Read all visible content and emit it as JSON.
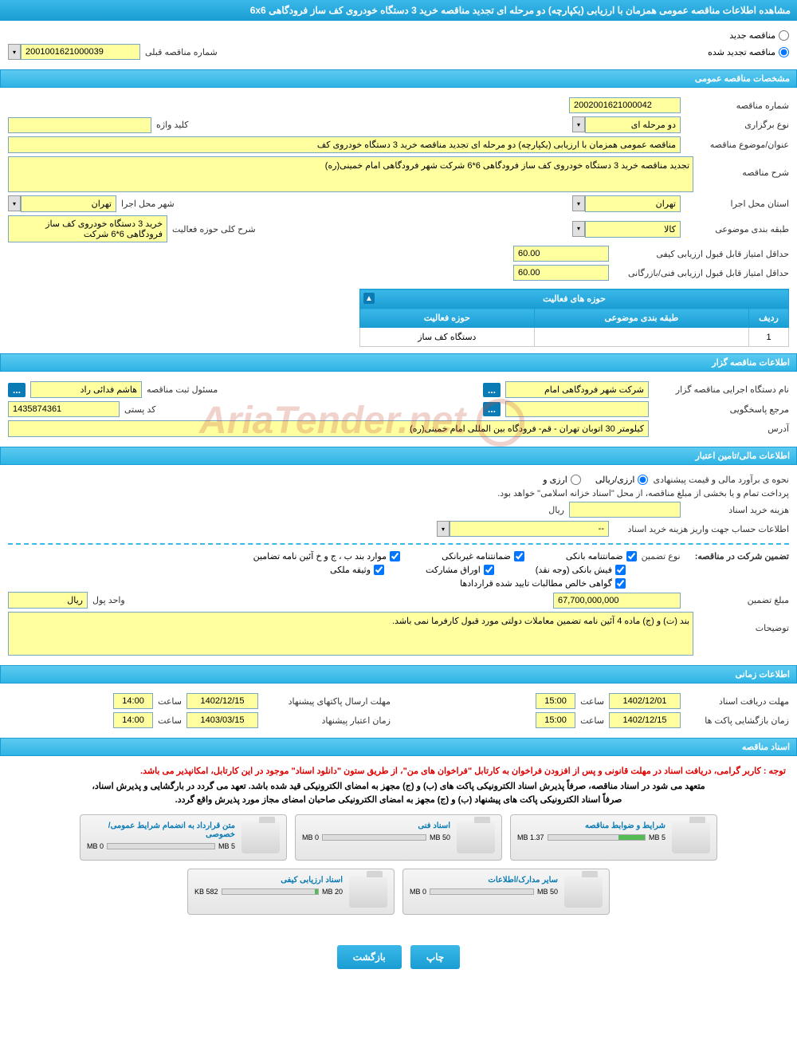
{
  "header": {
    "title": "مشاهده اطلاعات مناقصه عمومی همزمان با ارزیابی (یکپارچه) دو مرحله ای تجدید مناقصه خرید 3 دستگاه خودروی کف ساز فرودگاهی 6x6"
  },
  "top_radios": {
    "new_tender": "مناقصه جدید",
    "renewed_tender": "مناقصه تجدید شده",
    "prev_number_label": "شماره مناقصه قبلی",
    "prev_number": "2001001621000039"
  },
  "sections": {
    "general": "مشخصات مناقصه عمومی",
    "activity": "حوزه های فعالیت",
    "organizer": "اطلاعات مناقصه گزار",
    "financial": "اطلاعات مالی/تامین اعتبار",
    "timing": "اطلاعات زمانی",
    "documents": "اسناد مناقصه"
  },
  "general": {
    "tender_no_label": "شماره مناقصه",
    "tender_no": "2002001621000042",
    "type_label": "نوع برگزاری",
    "type": "دو مرحله ای",
    "keyword_label": "کلید واژه",
    "keyword": "",
    "subject_label": "عنوان/موضوع مناقصه",
    "subject": "مناقصه عمومی همزمان با ارزیابی (یکپارچه) دو مرحله ای تجدید مناقصه خرید 3 دستگاه خودروی کف",
    "desc_label": "شرح مناقصه",
    "desc": "تجدید مناقصه خرید 3 دستگاه خودروی کف ساز فرودگاهی 6*6 شرکت شهر فرودگاهی امام خمینی(ره)",
    "province_label": "استان محل اجرا",
    "province": "تهران",
    "city_label": "شهر محل اجرا",
    "city": "تهران",
    "class_label": "طبقه بندی موضوعی",
    "class": "کالا",
    "activity_desc_label": "شرح کلی حوزه فعالیت",
    "activity_desc": "خرید 3 دستگاه خودروی کف ساز فرودگاهی 6*6 شرکت",
    "min_quality_label": "حداقل امتیاز قابل قبول ارزیابی کیفی",
    "min_quality": "60.00",
    "min_tech_label": "حداقل امتیاز قابل قبول ارزیابی فنی/بازرگانی",
    "min_tech": "60.00"
  },
  "activity_table": {
    "cols": [
      "ردیف",
      "طبقه بندی موضوعی",
      "حوزه فعالیت"
    ],
    "rows": [
      [
        "1",
        "",
        "دستگاه کف ساز"
      ]
    ]
  },
  "organizer": {
    "org_label": "نام دستگاه اجرایی مناقصه گزار",
    "org": "شرکت شهر فرودگاهی امام",
    "registrar_label": "مسئول ثبت مناقصه",
    "registrar": "هاشم فدائی راد",
    "response_label": "مرجع پاسخگویی",
    "response": "",
    "postal_label": "کد پستی",
    "postal": "1435874361",
    "address_label": "آدرس",
    "address": "کیلومتر 30 اتوبان تهران - قم- فرودگاه بین المللی امام خمینی(ره)"
  },
  "financial": {
    "method_label": "نحوه ی برآورد مالی و قیمت پیشنهادی",
    "opt_currency": "ارزی/ریالی",
    "opt_foreign": "ارزی و",
    "payment_note": "پرداخت تمام و یا بخشی از مبلغ مناقصه، از محل \"اسناد خزانه اسلامی\" خواهد بود.",
    "doc_cost_label": "هزینه خرید اسناد",
    "doc_cost": "",
    "currency_unit": "ریال",
    "account_label": "اطلاعات حساب جهت واریز هزینه خرید اسناد",
    "account": "--",
    "guarantee_header": "تضمین شرکت در مناقصه:",
    "guarantee_type_label": "نوع تضمین",
    "chk_bank_guarantee": "ضمانتنامه بانکی",
    "chk_nonbank_guarantee": "ضمانتنامه غیربانکی",
    "chk_bylaw": "موارد بند ب ، ج و خ آئین نامه تضامین",
    "chk_bank_receipt": "فیش بانکی (وجه نقد)",
    "chk_participation": "اوراق مشارکت",
    "chk_property": "وثیقه ملکی",
    "chk_net_claims": "گواهی خالص مطالبات تایید شده قراردادها",
    "amount_label": "مبلغ تضمین",
    "amount": "67,700,000,000",
    "unit_label": "واحد پول",
    "unit": "ریال",
    "notes_label": "توضیحات",
    "notes": "بند (ت) و (ج) ماده 4 آئین نامه تضمین معاملات دولتی مورد قبول کارفرما نمی باشد."
  },
  "timing": {
    "receive_deadline_label": "مهلت دریافت اسناد",
    "receive_deadline_date": "1402/12/01",
    "receive_deadline_time_label": "ساعت",
    "receive_deadline_time": "15:00",
    "send_deadline_label": "مهلت ارسال پاکتهای پیشنهاد",
    "send_deadline_date": "1402/12/15",
    "send_deadline_time": "14:00",
    "open_label": "زمان بازگشایی پاکت ها",
    "open_date": "1402/12/15",
    "open_time": "15:00",
    "validity_label": "زمان اعتبار پیشنهاد",
    "validity_date": "1403/03/15",
    "validity_time": "14:00",
    "hour_label": "ساعت"
  },
  "documents": {
    "note1": "توجه : کاربر گرامی، دریافت اسناد در مهلت قانونی و پس از افزودن فراخوان به کارتابل \"فراخوان های من\"، از طریق ستون \"دانلود اسناد\" موجود در این کارتابل، امکانپذیر می باشد.",
    "note2": "متعهد می شود در اسناد مناقصه، صرفاً پذیرش اسناد الکترونیکی پاکت های (ب) و (ج) مجهز به امضای الکترونیکی قید شده باشد. تعهد می گردد در بارگشایی و پذیرش اسناد،",
    "note3": "صرفاً اسناد الکترونیکی پاکت های پیشنهاد (ب) و (ج) مجهز به امضای الکترونیکی صاحبان امضای مجاز مورد پذیرش واقع گردد.",
    "cards": [
      {
        "title": "شرایط و ضوابط مناقصه",
        "used": "1.37 MB",
        "total": "5 MB",
        "fill_pct": 27
      },
      {
        "title": "اسناد فنی",
        "used": "0 MB",
        "total": "50 MB",
        "fill_pct": 0
      },
      {
        "title": "متن قرارداد به انضمام شرایط عمومی/خصوصی",
        "used": "0 MB",
        "total": "5 MB",
        "fill_pct": 0
      },
      {
        "title": "سایر مدارک/اطلاعات",
        "used": "0 MB",
        "total": "50 MB",
        "fill_pct": 0
      },
      {
        "title": "اسناد ارزیابی کیفی",
        "used": "582 KB",
        "total": "20 MB",
        "fill_pct": 3
      }
    ]
  },
  "buttons": {
    "print": "چاپ",
    "back": "بازگشت"
  },
  "colors": {
    "header_bg": "#2eb5e5",
    "field_bg": "#ffffa0",
    "border": "#7aa5c5",
    "note_red": "#d00000"
  }
}
